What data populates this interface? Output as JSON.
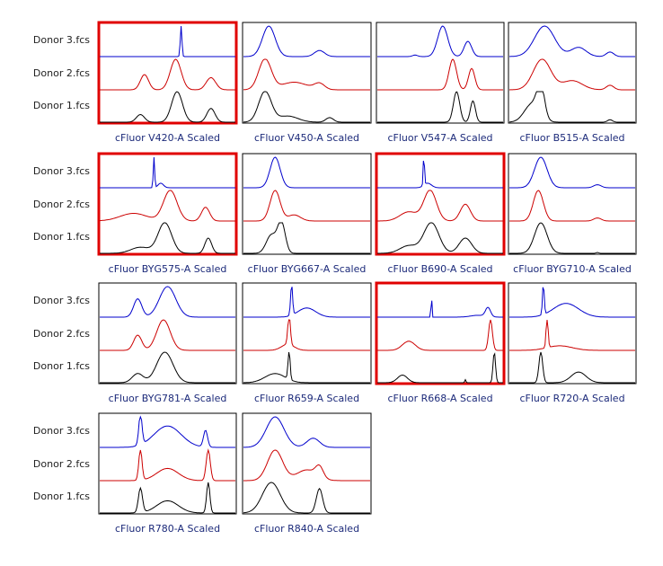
{
  "rows": [
    {
      "labels": [
        "Donor 3.fcs",
        "Donor 2.fcs",
        "Donor 1.fcs"
      ]
    },
    {
      "labels": [
        "Donor 3.fcs",
        "Donor 2.fcs",
        "Donor 1.fcs"
      ]
    },
    {
      "labels": [
        "Donor 3.fcs",
        "Donor 2.fcs",
        "Donor 1.fcs"
      ]
    },
    {
      "labels": [
        "Donor 3.fcs",
        "Donor 2.fcs",
        "Donor 1.fcs"
      ]
    }
  ],
  "panels": [
    {
      "title": "cFluor V420-A Scaled",
      "selected": true
    },
    {
      "title": "cFluor V450-A Scaled",
      "selected": false
    },
    {
      "title": "cFluor V547-A Scaled",
      "selected": false
    },
    {
      "title": "cFluor B515-A Scaled",
      "selected": false
    },
    {
      "title": "cFluor BYG575-A Scaled",
      "selected": true
    },
    {
      "title": "cFluor BYG667-A Scaled",
      "selected": false
    },
    {
      "title": "cFluor B690-A Scaled",
      "selected": true
    },
    {
      "title": "cFluor BYG710-A Scaled",
      "selected": false
    },
    {
      "title": "cFluor BYG781-A Scaled",
      "selected": false
    },
    {
      "title": "cFluor R659-A Scaled",
      "selected": false
    },
    {
      "title": "cFluor R668-A Scaled",
      "selected": true
    },
    {
      "title": "cFluor R720-A Scaled",
      "selected": false
    },
    {
      "title": "cFluor R780-A Scaled",
      "selected": false
    },
    {
      "title": "cFluor R840-A Scaled",
      "selected": false
    }
  ]
}
